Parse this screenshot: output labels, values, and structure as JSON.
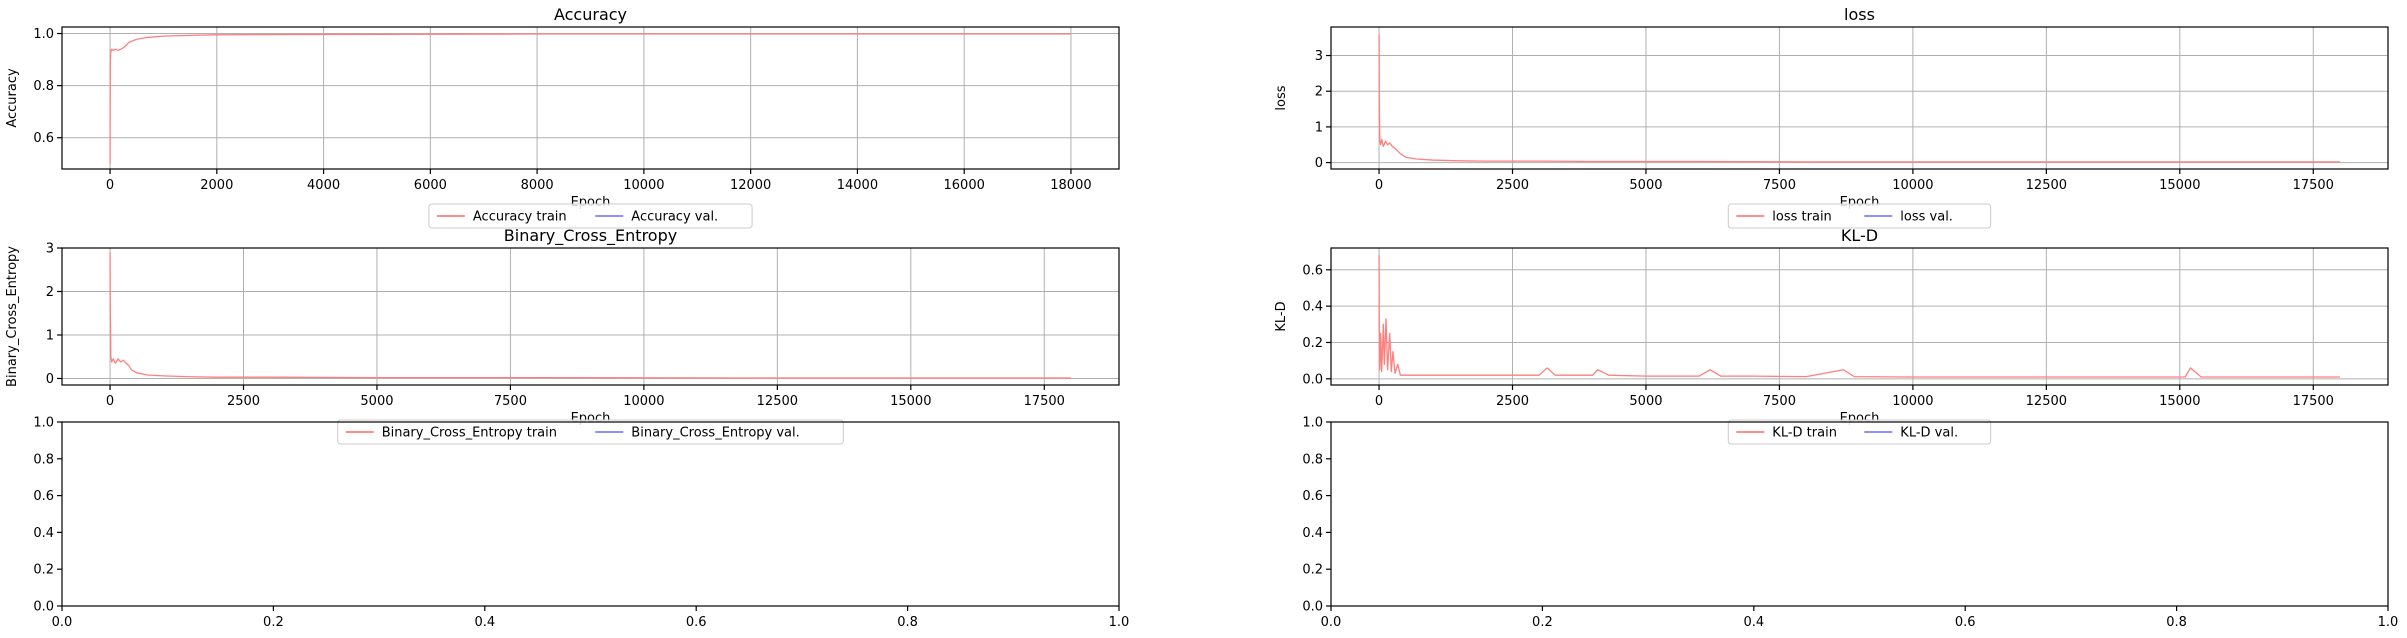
{
  "chart_data": [
    {
      "type": "line",
      "title": "Accuracy",
      "xlabel": "Epoch",
      "ylabel": "Accuracy",
      "xlim": [
        -900,
        18900
      ],
      "ylim": [
        0.48,
        1.025
      ],
      "xticks": [
        0,
        2000,
        4000,
        6000,
        8000,
        10000,
        12000,
        14000,
        16000,
        18000
      ],
      "yticks": [
        0.6,
        0.8,
        1.0
      ],
      "ytick_labels": [
        "0.6",
        "0.8",
        "1.0"
      ],
      "grid": true,
      "legend": "bottom-center",
      "series": [
        {
          "name": "Accuracy train",
          "color": "#ff7f7f",
          "x": [
            0,
            5,
            15,
            30,
            60,
            100,
            150,
            200,
            250,
            300,
            350,
            400,
            500,
            700,
            1000,
            1500,
            2000,
            3000,
            5000,
            8000,
            12000,
            16000,
            18000
          ],
          "y": [
            0.5,
            0.9,
            0.93,
            0.94,
            0.935,
            0.94,
            0.935,
            0.94,
            0.945,
            0.955,
            0.965,
            0.97,
            0.978,
            0.985,
            0.99,
            0.993,
            0.995,
            0.996,
            0.997,
            0.998,
            0.998,
            0.998,
            0.998
          ]
        },
        {
          "name": "Accuracy val.",
          "color": "#7f7fff",
          "x": [],
          "y": []
        }
      ]
    },
    {
      "type": "line",
      "title": "loss",
      "xlabel": "Epoch",
      "ylabel": "loss",
      "xlim": [
        -900,
        18900
      ],
      "ylim": [
        -0.18,
        3.8
      ],
      "xticks": [
        0,
        2500,
        5000,
        7500,
        10000,
        12500,
        15000,
        17500
      ],
      "yticks": [
        0,
        1,
        2,
        3
      ],
      "ytick_labels": [
        "0",
        "1",
        "2",
        "3"
      ],
      "grid": true,
      "legend": "bottom-center",
      "series": [
        {
          "name": "loss train",
          "color": "#ff7f7f",
          "x": [
            0,
            5,
            15,
            30,
            50,
            80,
            120,
            160,
            200,
            250,
            300,
            400,
            500,
            700,
            1000,
            1500,
            2000,
            3000,
            4000,
            6000,
            8000,
            10000,
            12000,
            15000,
            18000
          ],
          "y": [
            3.6,
            1.8,
            0.6,
            0.5,
            0.65,
            0.45,
            0.6,
            0.5,
            0.55,
            0.45,
            0.4,
            0.25,
            0.15,
            0.1,
            0.07,
            0.05,
            0.04,
            0.04,
            0.03,
            0.03,
            0.02,
            0.02,
            0.02,
            0.02,
            0.02
          ]
        },
        {
          "name": "loss val.",
          "color": "#7f7fff",
          "x": [],
          "y": []
        }
      ]
    },
    {
      "type": "line",
      "title": "Binary_Cross_Entropy",
      "xlabel": "Epoch",
      "ylabel": "Binary_Cross_Entropy",
      "xlim": [
        -900,
        18900
      ],
      "ylim": [
        -0.15,
        3.0
      ],
      "xticks": [
        0,
        2500,
        5000,
        7500,
        10000,
        12500,
        15000,
        17500
      ],
      "yticks": [
        0,
        1,
        2,
        3
      ],
      "ytick_labels": [
        "0",
        "1",
        "2",
        "3"
      ],
      "grid": true,
      "legend": "bottom-center",
      "series": [
        {
          "name": "Binary_Cross_Entropy train",
          "color": "#ff7f7f",
          "x": [
            0,
            5,
            15,
            30,
            60,
            100,
            150,
            200,
            250,
            300,
            350,
            400,
            500,
            700,
            1000,
            1500,
            2000,
            3000,
            5000,
            8000,
            12000,
            15000,
            18000
          ],
          "y": [
            2.9,
            1.5,
            0.5,
            0.38,
            0.45,
            0.35,
            0.45,
            0.38,
            0.42,
            0.35,
            0.3,
            0.2,
            0.13,
            0.08,
            0.06,
            0.04,
            0.03,
            0.03,
            0.02,
            0.02,
            0.01,
            0.01,
            0.01
          ]
        },
        {
          "name": "Binary_Cross_Entropy val.",
          "color": "#7f7fff",
          "x": [],
          "y": []
        }
      ]
    },
    {
      "type": "line",
      "title": "KL-D",
      "xlabel": "Epoch",
      "ylabel": "KL-D",
      "xlim": [
        -900,
        18900
      ],
      "ylim": [
        -0.034,
        0.72
      ],
      "xticks": [
        0,
        2500,
        5000,
        7500,
        10000,
        12500,
        15000,
        17500
      ],
      "yticks": [
        0.0,
        0.2,
        0.4,
        0.6
      ],
      "ytick_labels": [
        "0.0",
        "0.2",
        "0.4",
        "0.6"
      ],
      "grid": true,
      "legend": "bottom-center",
      "series": [
        {
          "name": "KL-D train",
          "color": "#ff7f7f",
          "x": [
            0,
            5,
            15,
            30,
            50,
            80,
            100,
            130,
            160,
            200,
            230,
            260,
            300,
            350,
            400,
            500,
            700,
            1000,
            2000,
            3000,
            3150,
            3300,
            4000,
            4100,
            4300,
            5000,
            6000,
            6200,
            6400,
            7000,
            8000,
            8700,
            8900,
            10000,
            12000,
            14000,
            15100,
            15200,
            15400,
            16000,
            18000
          ],
          "y": [
            0.68,
            0.3,
            0.05,
            0.25,
            0.04,
            0.3,
            0.08,
            0.33,
            0.05,
            0.25,
            0.04,
            0.15,
            0.03,
            0.08,
            0.02,
            0.02,
            0.02,
            0.02,
            0.02,
            0.02,
            0.06,
            0.02,
            0.02,
            0.05,
            0.02,
            0.015,
            0.015,
            0.05,
            0.015,
            0.015,
            0.012,
            0.05,
            0.012,
            0.01,
            0.01,
            0.01,
            0.01,
            0.06,
            0.01,
            0.01,
            0.01
          ]
        },
        {
          "name": "KL-D val.",
          "color": "#7f7fff",
          "x": [],
          "y": []
        }
      ]
    },
    {
      "type": "line",
      "title": "",
      "xlabel": "",
      "ylabel": "",
      "xlim": [
        0,
        1
      ],
      "ylim": [
        0,
        1
      ],
      "xticks": [
        0.0,
        0.2,
        0.4,
        0.6,
        0.8,
        1.0
      ],
      "xtick_labels": [
        "0.0",
        "0.2",
        "0.4",
        "0.6",
        "0.8",
        "1.0"
      ],
      "yticks": [
        0.0,
        0.2,
        0.4,
        0.6,
        0.8,
        1.0
      ],
      "ytick_labels": [
        "0.0",
        "0.2",
        "0.4",
        "0.6",
        "0.8",
        "1.0"
      ],
      "grid": false,
      "series": []
    },
    {
      "type": "line",
      "title": "",
      "xlabel": "",
      "ylabel": "",
      "xlim": [
        0,
        1
      ],
      "ylim": [
        0,
        1
      ],
      "xticks": [
        0.0,
        0.2,
        0.4,
        0.6,
        0.8,
        1.0
      ],
      "xtick_labels": [
        "0.0",
        "0.2",
        "0.4",
        "0.6",
        "0.8",
        "1.0"
      ],
      "yticks": [
        0.0,
        0.2,
        0.4,
        0.6,
        0.8,
        1.0
      ],
      "ytick_labels": [
        "0.0",
        "0.2",
        "0.4",
        "0.6",
        "0.8",
        "1.0"
      ],
      "grid": false,
      "series": []
    }
  ]
}
